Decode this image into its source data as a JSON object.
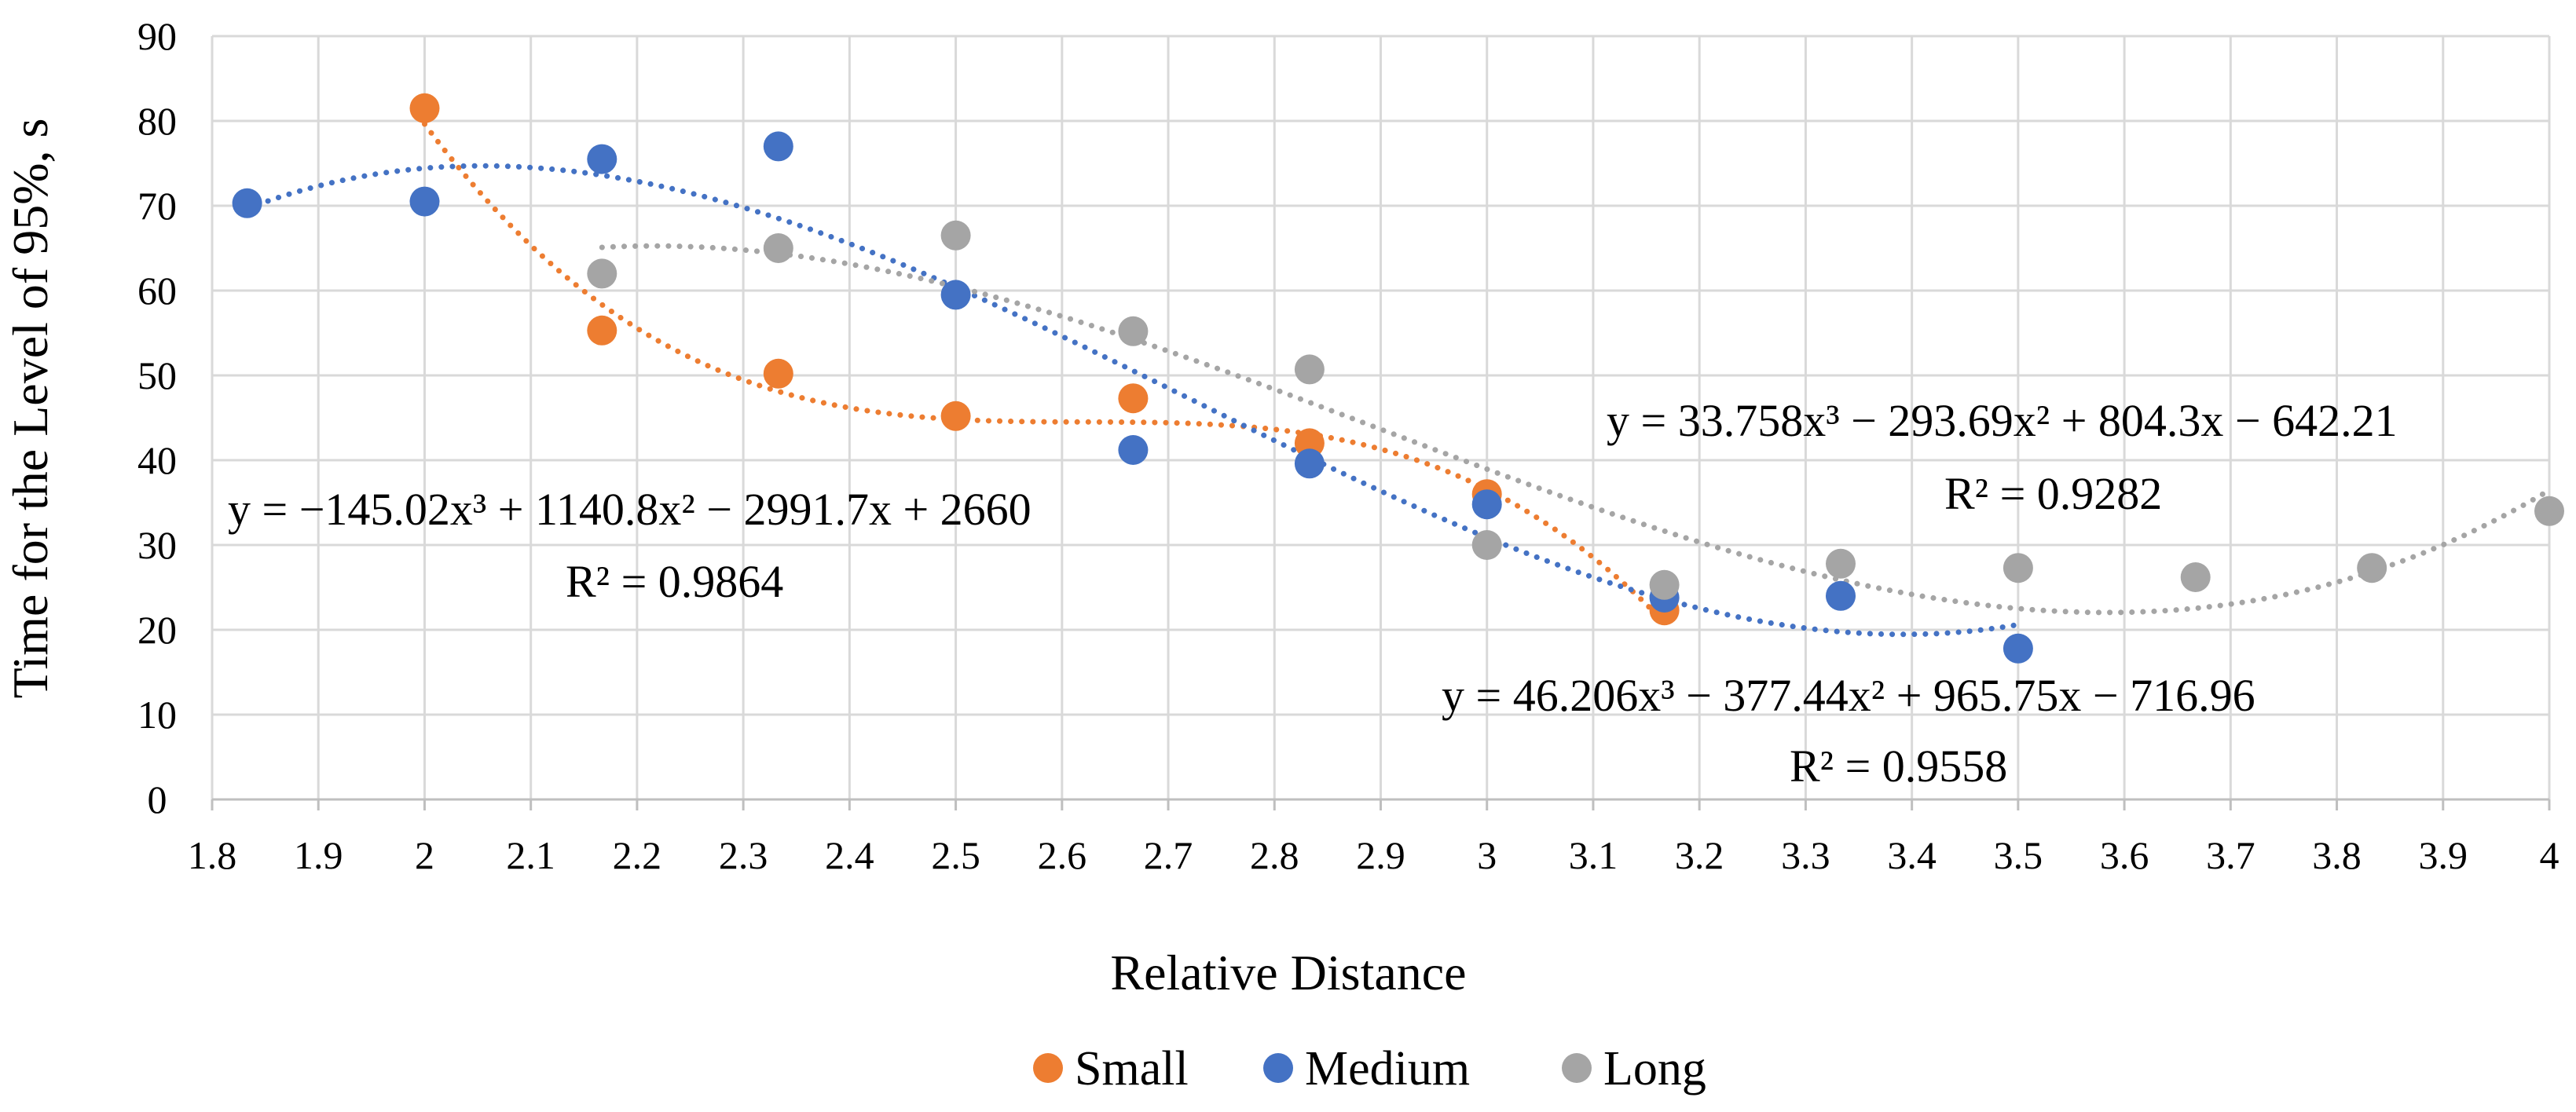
{
  "chart_data": {
    "type": "scatter",
    "title": "",
    "xlabel": "Relative Distance",
    "ylabel": "Time for the Level of 95%, s",
    "xlim": [
      1.8,
      4.0
    ],
    "ylim": [
      0,
      90
    ],
    "x_ticks": [
      1.8,
      1.9,
      2,
      2.1,
      2.2,
      2.3,
      2.4,
      2.5,
      2.6,
      2.7,
      2.8,
      2.9,
      3,
      3.1,
      3.2,
      3.3,
      3.4,
      3.5,
      3.6,
      3.7,
      3.8,
      3.9,
      4
    ],
    "x_tick_labels": [
      "1.8",
      "1.9",
      "2",
      "2.1",
      "2.2",
      "2.3",
      "2.4",
      "2.5",
      "2.6",
      "2.7",
      "2.8",
      "2.9",
      "3",
      "3.1",
      "3.2",
      "3.3",
      "3.4",
      "3.5",
      "3.6",
      "3.7",
      "3.8",
      "3.9",
      "4"
    ],
    "y_ticks": [
      0,
      10,
      20,
      30,
      40,
      50,
      60,
      70,
      80,
      90
    ],
    "y_tick_labels": [
      "0",
      "10",
      "20",
      "30",
      "40",
      "50",
      "60",
      "70",
      "80",
      "90"
    ],
    "grid": true,
    "legend_position": "bottom",
    "series": [
      {
        "name": "Small",
        "color": "#ED7D31",
        "x": [
          2.0,
          2.167,
          2.333,
          2.5,
          2.667,
          2.833,
          3.0,
          3.167
        ],
        "y": [
          81.5,
          55.3,
          50.2,
          45.2,
          47.3,
          42.0,
          36.0,
          22.3
        ],
        "trendline": {
          "coefficients": [
            -145.02,
            1140.8,
            -2991.7,
            2660
          ],
          "x_range": [
            2.0,
            3.167
          ],
          "equation": "y = −145.02x³ + 1140.8x² − 2991.7x + 2660",
          "r2": "R² = 0.9864"
        }
      },
      {
        "name": "Medium",
        "color": "#4472C4",
        "x": [
          1.833,
          2.0,
          2.167,
          2.333,
          2.5,
          2.667,
          2.833,
          3.0,
          3.167,
          3.333,
          3.5
        ],
        "y": [
          70.3,
          70.5,
          75.5,
          77.0,
          59.5,
          41.2,
          39.6,
          34.8,
          23.8,
          24.0,
          17.8
        ],
        "trendline": {
          "coefficients": [
            46.206,
            -377.44,
            965.75,
            -716.96
          ],
          "x_range": [
            1.833,
            3.5
          ],
          "equation": "y = 46.206x³ − 377.44x² + 965.75x − 716.96",
          "r2": "R² = 0.9558"
        }
      },
      {
        "name": "Long",
        "color": "#A5A5A5",
        "x": [
          2.167,
          2.333,
          2.5,
          2.667,
          2.833,
          3.0,
          3.167,
          3.333,
          3.5,
          3.667,
          3.833,
          4.0
        ],
        "y": [
          62.0,
          65.0,
          66.5,
          55.2,
          50.7,
          30.0,
          25.3,
          27.8,
          27.3,
          26.2,
          27.3,
          34.0
        ],
        "trendline": {
          "coefficients": [
            33.758,
            -293.69,
            804.3,
            -642.21
          ],
          "x_range": [
            2.167,
            4.0
          ],
          "equation": "y = 33.758x³ − 293.69x² + 804.3x − 642.21",
          "r2": "R² = 0.9282"
        }
      }
    ]
  }
}
